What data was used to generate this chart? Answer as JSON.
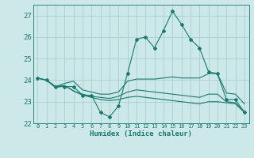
{
  "bg_color": "#cce8e8",
  "grid_color": "#aacfcf",
  "line_color": "#1a7a6e",
  "line_width": 0.8,
  "marker": "D",
  "marker_size": 2.0,
  "xlabel": "Humidex (Indice chaleur)",
  "xlim": [
    -0.5,
    23.5
  ],
  "ylim": [
    22,
    27.5
  ],
  "yticks": [
    22,
    23,
    24,
    25,
    26,
    27
  ],
  "xtick_labels": [
    "0",
    "1",
    "2",
    "3",
    "4",
    "5",
    "6",
    "7",
    "8",
    "9",
    "10",
    "11",
    "12",
    "13",
    "14",
    "15",
    "16",
    "17",
    "18",
    "19",
    "20",
    "21",
    "22",
    "23"
  ],
  "series": [
    {
      "x": [
        0,
        1,
        2,
        3,
        4,
        5,
        6,
        7,
        8,
        9,
        10,
        11,
        12,
        13,
        14,
        15,
        16,
        17,
        18,
        19,
        20,
        21,
        22,
        23
      ],
      "y": [
        24.1,
        24.0,
        23.7,
        23.7,
        23.7,
        23.3,
        23.3,
        22.5,
        22.3,
        22.8,
        24.3,
        25.9,
        26.0,
        25.5,
        26.3,
        27.2,
        26.6,
        25.9,
        25.5,
        24.4,
        24.3,
        23.1,
        23.1,
        22.5
      ],
      "has_markers": true
    },
    {
      "x": [
        0,
        1,
        2,
        3,
        4,
        5,
        6,
        7,
        8,
        9,
        10,
        11,
        12,
        13,
        14,
        15,
        16,
        17,
        18,
        19,
        20,
        21,
        22,
        23
      ],
      "y": [
        24.1,
        24.0,
        23.7,
        23.85,
        23.95,
        23.55,
        23.45,
        23.35,
        23.35,
        23.45,
        23.95,
        24.05,
        24.05,
        24.05,
        24.1,
        24.15,
        24.1,
        24.1,
        24.1,
        24.3,
        24.3,
        23.4,
        23.35,
        22.9
      ],
      "has_markers": false
    },
    {
      "x": [
        0,
        1,
        2,
        3,
        4,
        5,
        6,
        7,
        8,
        9,
        10,
        11,
        12,
        13,
        14,
        15,
        16,
        17,
        18,
        19,
        20,
        21,
        22,
        23
      ],
      "y": [
        24.1,
        24.0,
        23.65,
        23.75,
        23.5,
        23.35,
        23.25,
        23.2,
        23.15,
        23.25,
        23.45,
        23.55,
        23.5,
        23.45,
        23.4,
        23.35,
        23.3,
        23.25,
        23.2,
        23.35,
        23.35,
        23.0,
        22.95,
        22.55
      ],
      "has_markers": false
    },
    {
      "x": [
        0,
        1,
        2,
        3,
        4,
        5,
        6,
        7,
        8,
        9,
        10,
        11,
        12,
        13,
        14,
        15,
        16,
        17,
        18,
        19,
        20,
        21,
        22,
        23
      ],
      "y": [
        24.1,
        24.0,
        23.7,
        23.75,
        23.5,
        23.3,
        23.2,
        23.1,
        23.05,
        23.1,
        23.2,
        23.25,
        23.2,
        23.15,
        23.1,
        23.05,
        23.0,
        22.95,
        22.9,
        23.0,
        23.0,
        22.95,
        22.9,
        22.5
      ],
      "has_markers": false
    }
  ]
}
